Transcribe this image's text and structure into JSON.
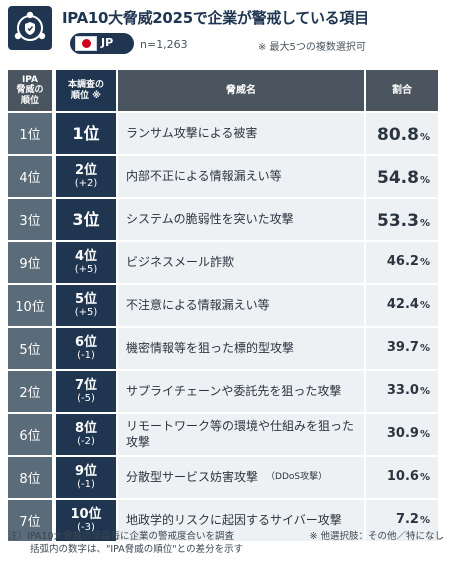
{
  "header": {
    "title": "IPA10大脅威2025で企業が警戒している項目",
    "country": "JP",
    "n": "n=1,263",
    "note": "※ 最大5つの複数選択可"
  },
  "table": {
    "headers": {
      "ipa_rank": "IPA\n脅威の\n順位",
      "survey_rank": "本調査の\n順位 ※",
      "threat": "脅威名",
      "ratio": "割合"
    },
    "rows": [
      {
        "ipa": "1位",
        "rank": "1位",
        "diff": "",
        "threat": "ランサム攻撃による被害",
        "ratio": "80.8",
        "pct": "%"
      },
      {
        "ipa": "4位",
        "rank": "2位",
        "diff": "(+2)",
        "threat": "内部不正による情報漏えい等",
        "ratio": "54.8",
        "pct": "%"
      },
      {
        "ipa": "3位",
        "rank": "3位",
        "diff": "",
        "threat": "システムの脆弱性を突いた攻撃",
        "ratio": "53.3",
        "pct": "%"
      },
      {
        "ipa": "9位",
        "rank": "4位",
        "diff": "(+5)",
        "threat": "ビジネスメール詐欺",
        "ratio": "46.2",
        "pct": "%"
      },
      {
        "ipa": "10位",
        "rank": "5位",
        "diff": "(+5)",
        "threat": "不注意による情報漏えい等",
        "ratio": "42.4",
        "pct": "%"
      },
      {
        "ipa": "5位",
        "rank": "6位",
        "diff": "(-1)",
        "threat": "機密情報等を狙った標的型攻撃",
        "ratio": "39.7",
        "pct": "%"
      },
      {
        "ipa": "2位",
        "rank": "7位",
        "diff": "(-5)",
        "threat": "サプライチェーンや委託先を狙った攻撃",
        "ratio": "33.0",
        "pct": "%"
      },
      {
        "ipa": "6位",
        "rank": "8位",
        "diff": "(-2)",
        "threat": "リモートワーク等の環境や仕組みを狙った攻撃",
        "ratio": "30.9",
        "pct": "%"
      },
      {
        "ipa": "8位",
        "rank": "9位",
        "diff": "(-1)",
        "threat": "分散型サービス妨害攻撃",
        "threat_sub": "（DDoS攻撃）",
        "ratio": "10.6",
        "pct": "%"
      },
      {
        "ipa": "7位",
        "rank": "10位",
        "diff": "(-3)",
        "threat": "地政学的リスクに起因するサイバー攻撃",
        "ratio": "7.2",
        "pct": "%"
      }
    ]
  },
  "footer": {
    "line1": "注）IPA10大脅威の項目毎に企業の警戒度合いを調査",
    "line2": "括弧内の数字は、\"IPA脅威の順位\"との差分を示す",
    "other": "※ 他選択肢：その他／特になし"
  },
  "colors": {
    "navy": "#1f3550",
    "slate": "#5a6b7a",
    "header_gray": "#4b5560",
    "row_bg": "#eef1f3"
  },
  "icons": {
    "logo": "people-network-shield-icon",
    "flag": "japan-flag-icon"
  }
}
